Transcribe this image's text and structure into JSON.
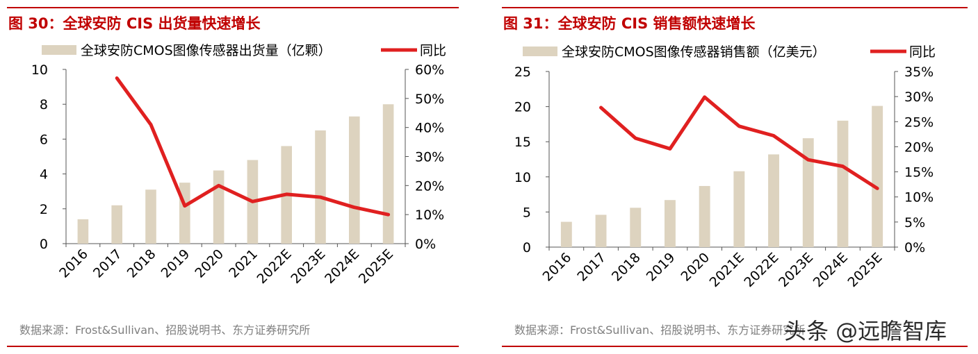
{
  "colors": {
    "accent": "#c00000",
    "bar": "#ddd3bf",
    "line": "#e02020",
    "source_text": "#7f7f7f"
  },
  "watermark": "头条 @远瞻智库",
  "chart_data": [
    {
      "type": "bar",
      "title": "图 30：全球安防 CIS 出货量快速增长",
      "source": "数据来源：Frost&Sullivan、招股说明书、东方证券研究所",
      "categories": [
        "2016",
        "2017",
        "2018",
        "2019",
        "2020",
        "2021",
        "2022E",
        "2023E",
        "2024E",
        "2025E"
      ],
      "series": [
        {
          "name": "全球安防CMOS图像传感器出货量（亿颗）",
          "kind": "bar",
          "axis": "left",
          "values": [
            1.4,
            2.2,
            3.1,
            3.5,
            4.2,
            4.8,
            5.6,
            6.5,
            7.3,
            8.0
          ]
        },
        {
          "name": "同比",
          "kind": "line",
          "axis": "right",
          "values": [
            null,
            57,
            41,
            13,
            20,
            14.5,
            17,
            16,
            12.5,
            10
          ]
        }
      ],
      "ylim_left": [
        0,
        10
      ],
      "yticks_left": [
        "0",
        "2",
        "4",
        "6",
        "8",
        "10"
      ],
      "ylim_right": [
        0,
        60
      ],
      "yticks_right": [
        "0%",
        "10%",
        "20%",
        "30%",
        "40%",
        "50%",
        "60%"
      ],
      "legend": "top"
    },
    {
      "type": "bar",
      "title": "图 31：全球安防 CIS 销售额快速增长",
      "source": "数据来源：Frost&Sullivan、招股说明书、东方证券研究所",
      "categories": [
        "2016",
        "2017",
        "2018",
        "2019",
        "2020",
        "2021E",
        "2022E",
        "2023E",
        "2024E",
        "2025E"
      ],
      "series": [
        {
          "name": "全球安防CMOS图像传感器销售额（亿美元）",
          "kind": "bar",
          "axis": "left",
          "values": [
            3.6,
            4.6,
            5.6,
            6.7,
            8.7,
            10.8,
            13.2,
            15.5,
            18.0,
            20.1
          ]
        },
        {
          "name": "同比",
          "kind": "line",
          "axis": "right",
          "values": [
            null,
            27.8,
            21.7,
            19.6,
            29.9,
            24.1,
            22.2,
            17.4,
            16.1,
            11.7
          ]
        }
      ],
      "ylim_left": [
        0,
        25
      ],
      "yticks_left": [
        "0",
        "5",
        "10",
        "15",
        "20",
        "25"
      ],
      "ylim_right": [
        0,
        35
      ],
      "yticks_right": [
        "0%",
        "5%",
        "10%",
        "15%",
        "20%",
        "25%",
        "30%",
        "35%"
      ],
      "legend": "top"
    }
  ]
}
